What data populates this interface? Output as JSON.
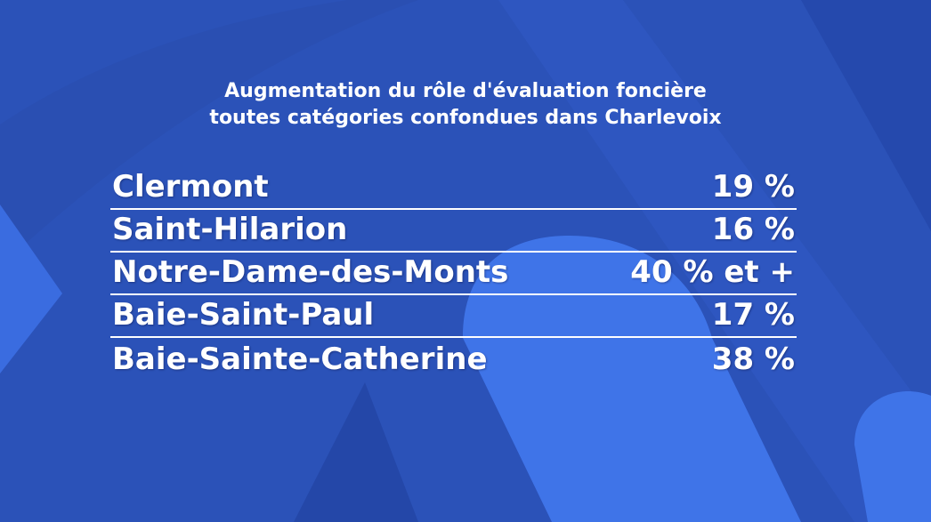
{
  "title_lines": [
    "Augmentation du rôle d'évaluation foncière",
    "toutes catégories confondues dans Charlevoix"
  ],
  "rows": [
    {
      "municipality": "Clermont",
      "value_label": "19 %"
    },
    {
      "municipality": "Saint-Hilarion",
      "value_label": "16 %"
    },
    {
      "municipality": "Notre-Dame-des-Monts",
      "value_label": "40 % et +"
    },
    {
      "municipality": "Baie-Saint-Paul",
      "value_label": "17 %"
    },
    {
      "municipality": "Baie-Sainte-Catherine",
      "value_label": "38 %"
    }
  ],
  "chart_data": {
    "type": "table",
    "title": "Augmentation du rôle d'évaluation foncière toutes catégories confondues dans Charlevoix",
    "categories": [
      "Clermont",
      "Saint-Hilarion",
      "Notre-Dame-des-Monts",
      "Baie-Saint-Paul",
      "Baie-Sainte-Catherine"
    ],
    "values": [
      19,
      16,
      40,
      17,
      38
    ]
  },
  "colors": {
    "background": "#2b52b8",
    "shape_dark": "#2447a8",
    "shape_light": "#3f74e8",
    "text": "#ffffff"
  }
}
